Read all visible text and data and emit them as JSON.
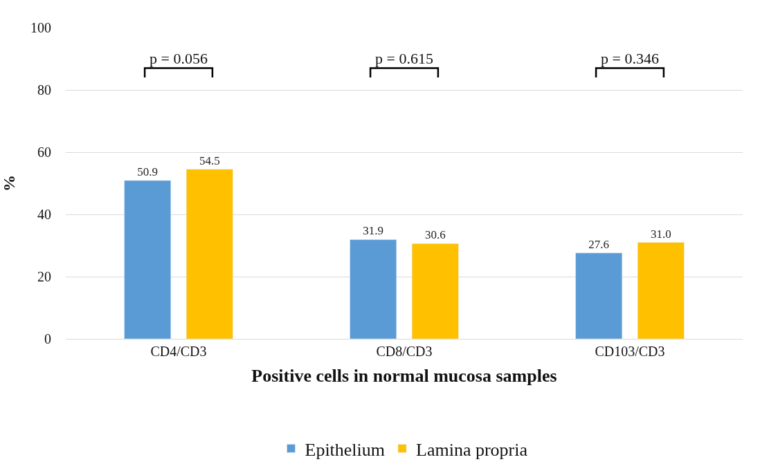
{
  "chart_data": {
    "type": "bar",
    "xlabel": "Positive cells in normal mucosa samples",
    "ylabel": "%",
    "categories": [
      "CD4/CD3",
      "CD8/CD3",
      "CD103/CD3"
    ],
    "series": [
      {
        "name": "Epithelium",
        "color": "#5b9bd5",
        "values": [
          50.9,
          31.9,
          27.6
        ],
        "value_labels": [
          "50.9",
          "31.9",
          "27.6"
        ]
      },
      {
        "name": "Lamina propria",
        "color": "#ffc000",
        "values": [
          54.5,
          30.6,
          31.0
        ],
        "value_labels": [
          "54.5",
          "30.6",
          "31.0"
        ]
      }
    ],
    "ylim": [
      0,
      100
    ],
    "yticks": [
      0,
      20,
      40,
      60,
      80,
      100
    ],
    "grid": "y",
    "legend": "bottom",
    "annotations": [
      "p = 0.056",
      "p = 0.615",
      "p = 0.346"
    ]
  }
}
